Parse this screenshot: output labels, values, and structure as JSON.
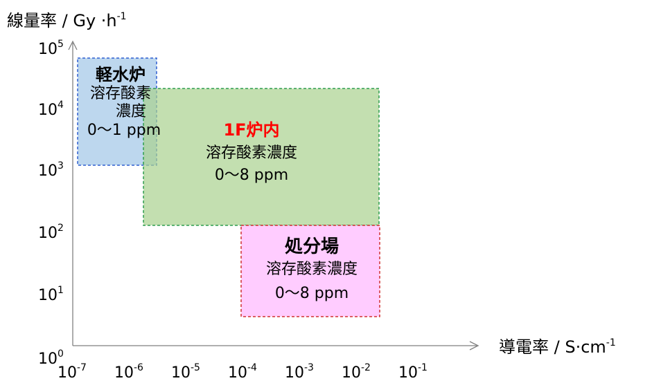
{
  "y_axis": {
    "title_main": "線量率 / Gy ·h",
    "title_sup": "-1",
    "ticks": [
      {
        "base": "10",
        "exp": "0"
      },
      {
        "base": "10",
        "exp": "1"
      },
      {
        "base": "10",
        "exp": "2"
      },
      {
        "base": "10",
        "exp": "3"
      },
      {
        "base": "10",
        "exp": "4"
      },
      {
        "base": "10",
        "exp": "5"
      }
    ]
  },
  "x_axis": {
    "title_main": "導電率 / S·cm",
    "title_sup": "-1",
    "ticks": [
      {
        "base": "10",
        "exp": "-7"
      },
      {
        "base": "10",
        "exp": "-6"
      },
      {
        "base": "10",
        "exp": "-5"
      },
      {
        "base": "10",
        "exp": "-4"
      },
      {
        "base": "10",
        "exp": "-3"
      },
      {
        "base": "10",
        "exp": "-2"
      },
      {
        "base": "10",
        "exp": "-1"
      }
    ]
  },
  "regions": {
    "lwr": {
      "title": "軽水炉",
      "line1": "溶存酸素",
      "line2": "濃度",
      "line3": "0〜1 ppm",
      "fill": "#bdd7ee",
      "border": "#2f5fd0"
    },
    "f1": {
      "title": "1F炉内",
      "line1": "溶存酸素濃度",
      "line2": "0〜8 ppm",
      "fill": "#a9d18e",
      "fill_opacity": 0.7,
      "border": "#2e9e4f",
      "title_color": "#ff0000"
    },
    "disposal": {
      "title": "処分場",
      "line1": "溶存酸素濃度",
      "line2": "0〜8 ppm",
      "fill": "#ffccff",
      "border": "#d03030"
    }
  },
  "colors": {
    "axis": "#7f7f7f",
    "text": "#000000"
  }
}
